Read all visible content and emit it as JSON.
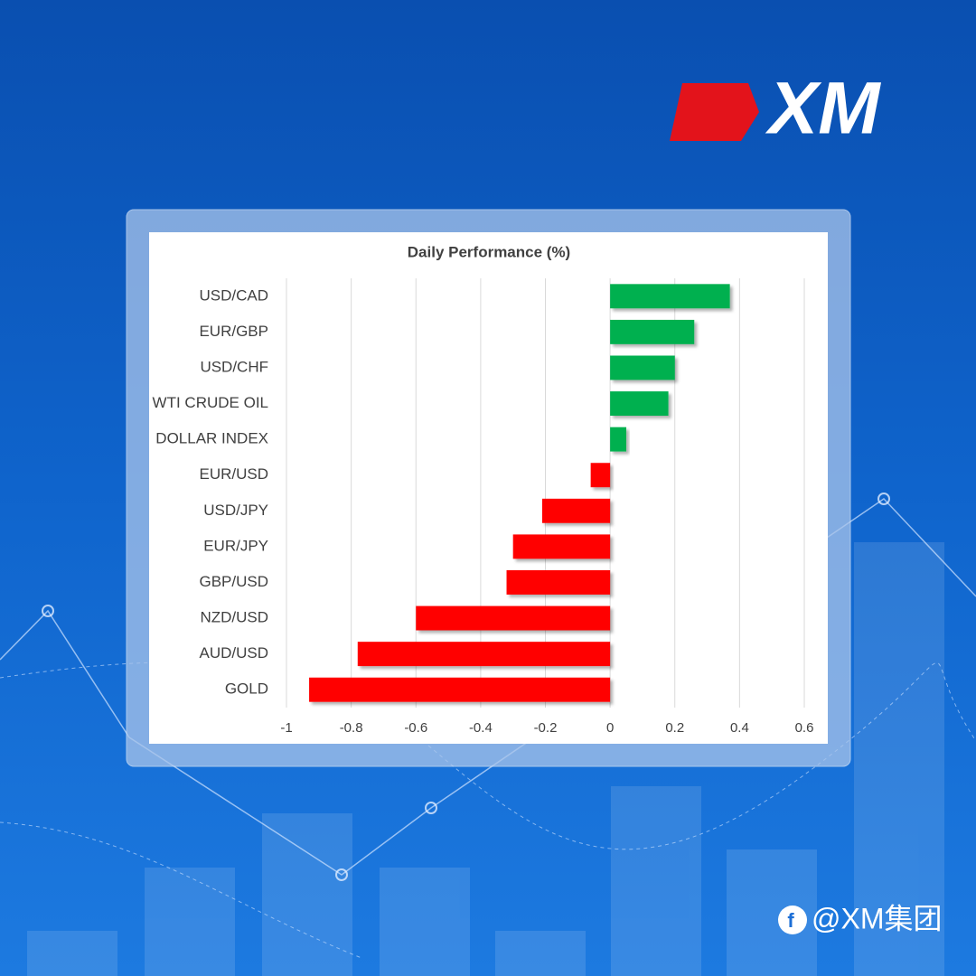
{
  "chart_data": {
    "type": "hbar",
    "title": "Daily Performance (%)",
    "categories": [
      "USD/CAD",
      "EUR/GBP",
      "USD/CHF",
      "WTI CRUDE OIL",
      "DOLLAR INDEX",
      "EUR/USD",
      "USD/JPY",
      "EUR/JPY",
      "GBP/USD",
      "NZD/USD",
      "AUD/USD",
      "GOLD"
    ],
    "values": [
      0.37,
      0.26,
      0.2,
      0.18,
      0.05,
      -0.06,
      -0.21,
      -0.3,
      -0.32,
      -0.6,
      -0.78,
      -0.93
    ],
    "color_positive": "#00b050",
    "color_negative": "#ff0000",
    "xlim": [
      -1,
      0.6
    ],
    "xticks": [
      -1,
      -0.8,
      -0.6,
      -0.4,
      -0.2,
      0,
      0.2,
      0.4,
      0.6
    ],
    "grid": true
  },
  "brand": {
    "logo": "XM",
    "social": "@XM集团"
  }
}
